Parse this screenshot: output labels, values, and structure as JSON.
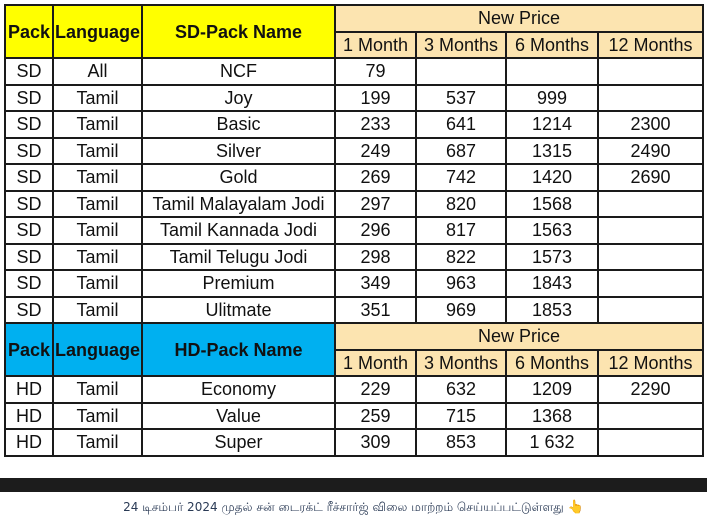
{
  "sd_header": {
    "pack": "Pack",
    "language": "Language",
    "name": "SD-Pack Name",
    "new_price": "New Price",
    "durations": [
      "1 Month",
      "3 Months",
      "6 Months",
      "12 Months"
    ]
  },
  "sd_rows": [
    {
      "pack": "SD",
      "language": "All",
      "name": "NCF",
      "m1": "79",
      "m3": "",
      "m6": "",
      "m12": ""
    },
    {
      "pack": "SD",
      "language": "Tamil",
      "name": "Joy",
      "m1": "199",
      "m3": "537",
      "m6": "999",
      "m12": ""
    },
    {
      "pack": "SD",
      "language": "Tamil",
      "name": "Basic",
      "m1": "233",
      "m3": "641",
      "m6": "1214",
      "m12": "2300"
    },
    {
      "pack": "SD",
      "language": "Tamil",
      "name": "Silver",
      "m1": "249",
      "m3": "687",
      "m6": "1315",
      "m12": "2490"
    },
    {
      "pack": "SD",
      "language": "Tamil",
      "name": "Gold",
      "m1": "269",
      "m3": "742",
      "m6": "1420",
      "m12": "2690"
    },
    {
      "pack": "SD",
      "language": "Tamil",
      "name": "Tamil Malayalam Jodi",
      "m1": "297",
      "m3": "820",
      "m6": "1568",
      "m12": ""
    },
    {
      "pack": "SD",
      "language": "Tamil",
      "name": "Tamil Kannada Jodi",
      "m1": "296",
      "m3": "817",
      "m6": "1563",
      "m12": ""
    },
    {
      "pack": "SD",
      "language": "Tamil",
      "name": "Tamil Telugu Jodi",
      "m1": "298",
      "m3": "822",
      "m6": "1573",
      "m12": ""
    },
    {
      "pack": "SD",
      "language": "Tamil",
      "name": "Premium",
      "m1": "349",
      "m3": "963",
      "m6": "1843",
      "m12": ""
    },
    {
      "pack": "SD",
      "language": "Tamil",
      "name": "Ulitmate",
      "m1": "351",
      "m3": "969",
      "m6": "1853",
      "m12": ""
    }
  ],
  "hd_header": {
    "pack": "Pack",
    "language": "Language",
    "name": "HD-Pack Name",
    "new_price": "New Price",
    "durations": [
      "1 Month",
      "3 Months",
      "6 Months",
      "12 Months"
    ]
  },
  "hd_rows": [
    {
      "pack": "HD",
      "language": "Tamil",
      "name": "Economy",
      "m1": "229",
      "m3": "632",
      "m6": "1209",
      "m12": "2290"
    },
    {
      "pack": "HD",
      "language": "Tamil",
      "name": "Value",
      "m1": "259",
      "m3": "715",
      "m6": "1368",
      "m12": ""
    },
    {
      "pack": "HD",
      "language": "Tamil",
      "name": "Super",
      "m1": "309",
      "m3": "853",
      "m6": "1 632",
      "m12": ""
    }
  ],
  "caption": {
    "text": "24 டிசம்பர் 2024 முதல் சன் டைரக்ட் ரீச்சார்ஜ் விலை மாற்றம் செய்யப்பட்டுள்ளது",
    "icon": "pointing-hand-icon",
    "icon_glyph": "👆"
  },
  "colors": {
    "sd_header": "#ffff00",
    "hd_header": "#00b0f0",
    "price_header": "#fce4b0"
  }
}
